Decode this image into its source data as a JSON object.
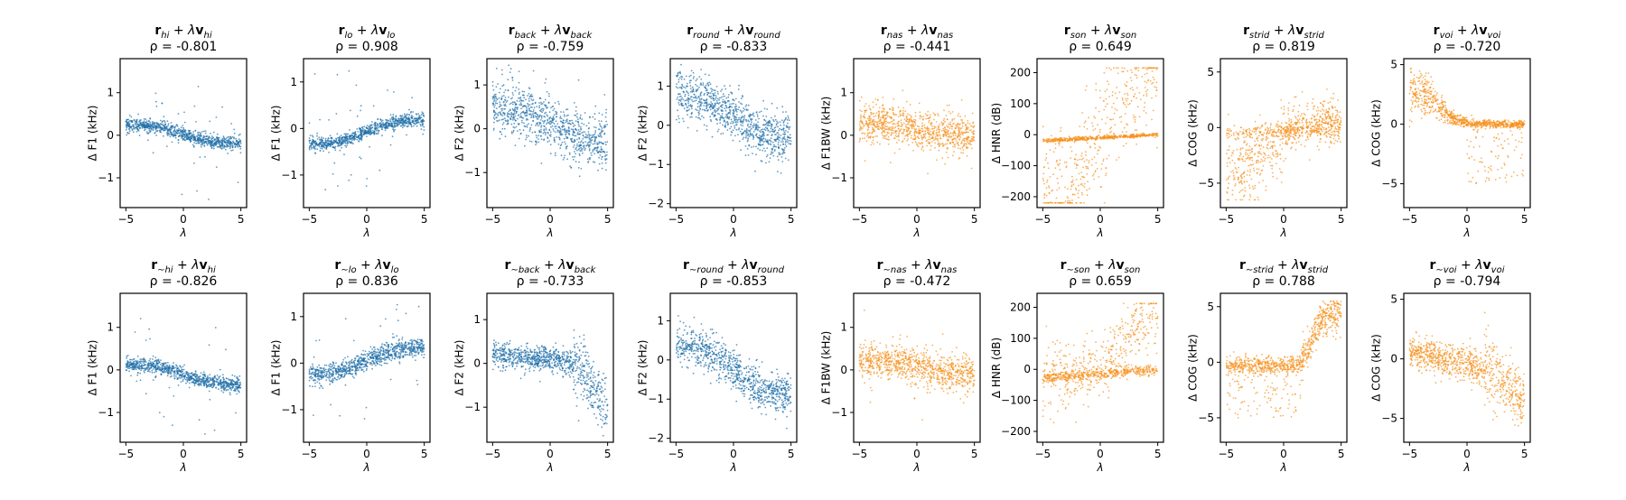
{
  "colors": {
    "blue": "#1f6fa8",
    "orange": "#f7921e"
  },
  "chart_data": [
    {
      "type": "scatter",
      "row": 0,
      "col": 0,
      "color": "blue",
      "title": {
        "vec": "r",
        "vec_sub": "hi",
        "plus": " + ",
        "lambda": "λ",
        "dir": "v",
        "dir_sub": "hi"
      },
      "rho_label": "ρ = -0.801",
      "rho": -0.801,
      "ylabel": "Δ F1 (kHz)",
      "xlabel": "λ",
      "xlim": [
        -5.5,
        5.5
      ],
      "ylim": [
        -1.7,
        1.8
      ],
      "xticks": [
        -5,
        0,
        5
      ],
      "yticks": [
        -1,
        0,
        1
      ],
      "trend": {
        "type": "decline",
        "start": 0.25,
        "end": -0.2,
        "noise": 0.08,
        "outliers": 0.35
      }
    },
    {
      "type": "scatter",
      "row": 0,
      "col": 1,
      "color": "blue",
      "title": {
        "vec": "r",
        "vec_sub": "lo",
        "plus": " + ",
        "lambda": "λ",
        "dir": "v",
        "dir_sub": "lo"
      },
      "rho_label": "ρ = 0.908",
      "rho": 0.908,
      "ylabel": "Δ F1 (kHz)",
      "xlabel": "λ",
      "xlim": [
        -5.5,
        5.5
      ],
      "ylim": [
        -1.7,
        1.5
      ],
      "xticks": [
        -5,
        0,
        5
      ],
      "yticks": [
        -1,
        0,
        1
      ],
      "trend": {
        "type": "rise",
        "start": -0.35,
        "end": 0.2,
        "noise": 0.07,
        "outliers": 0.3
      }
    },
    {
      "type": "scatter",
      "row": 0,
      "col": 2,
      "color": "blue",
      "title": {
        "vec": "r",
        "vec_sub": "back",
        "plus": " + ",
        "lambda": "λ",
        "dir": "v",
        "dir_sub": "back"
      },
      "rho_label": "ρ = -0.759",
      "rho": -0.759,
      "ylabel": "Δ F2 (kHz)",
      "xlabel": "λ",
      "xlim": [
        -5.5,
        5.5
      ],
      "ylim": [
        -1.8,
        1.6
      ],
      "xticks": [
        -5,
        0,
        5
      ],
      "yticks": [
        -1,
        0,
        1
      ],
      "trend": {
        "type": "decline",
        "start": 0.5,
        "end": -0.3,
        "noise": 0.3,
        "outliers": 0.3
      }
    },
    {
      "type": "scatter",
      "row": 0,
      "col": 3,
      "color": "blue",
      "title": {
        "vec": "r",
        "vec_sub": "round",
        "plus": " + ",
        "lambda": "λ",
        "dir": "v",
        "dir_sub": "round"
      },
      "rho_label": "ρ = -0.833",
      "rho": -0.833,
      "ylabel": "Δ F2 (kHz)",
      "xlabel": "λ",
      "xlim": [
        -5.5,
        5.5
      ],
      "ylim": [
        -2.1,
        1.7
      ],
      "xticks": [
        -5,
        0,
        5
      ],
      "yticks": [
        -2,
        -1,
        0,
        1
      ],
      "trend": {
        "type": "decline",
        "start": 0.8,
        "end": -0.35,
        "noise": 0.3,
        "outliers": 0.2
      }
    },
    {
      "type": "scatter",
      "row": 0,
      "col": 4,
      "color": "orange",
      "title": {
        "vec": "r",
        "vec_sub": "nas",
        "plus": " + ",
        "lambda": "λ",
        "dir": "v",
        "dir_sub": "nas"
      },
      "rho_label": "ρ = -0.441",
      "rho": -0.441,
      "ylabel": "Δ F1BW (kHz)",
      "xlabel": "λ",
      "xlim": [
        -5.5,
        5.5
      ],
      "ylim": [
        -1.7,
        1.8
      ],
      "xticks": [
        -5,
        0,
        5
      ],
      "yticks": [
        -1,
        0,
        1
      ],
      "trend": {
        "type": "decline",
        "start": 0.3,
        "end": 0.0,
        "noise": 0.22,
        "outliers": 0.2
      }
    },
    {
      "type": "scatter",
      "row": 0,
      "col": 5,
      "color": "orange",
      "title": {
        "vec": "r",
        "vec_sub": "son",
        "plus": " + ",
        "lambda": "λ",
        "dir": "v",
        "dir_sub": "son"
      },
      "rho_label": "ρ = 0.649",
      "rho": 0.649,
      "ylabel": "Δ HNR (dB)",
      "xlabel": "λ",
      "xlim": [
        -5.5,
        5.5
      ],
      "ylim": [
        -235,
        245
      ],
      "xticks": [
        -5,
        0,
        5
      ],
      "yticks": [
        -200,
        -100,
        0,
        100,
        200
      ],
      "trend": {
        "type": "son"
      }
    },
    {
      "type": "scatter",
      "row": 0,
      "col": 6,
      "color": "orange",
      "title": {
        "vec": "r",
        "vec_sub": "strid",
        "plus": " + ",
        "lambda": "λ",
        "dir": "v",
        "dir_sub": "strid"
      },
      "rho_label": "ρ = 0.819",
      "rho": 0.819,
      "ylabel": "Δ COG (kHz)",
      "xlabel": "λ",
      "xlim": [
        -5.5,
        5.5
      ],
      "ylim": [
        -7.2,
        6.2
      ],
      "xticks": [
        -5,
        0,
        5
      ],
      "yticks": [
        -5,
        0,
        5
      ],
      "trend": {
        "type": "strid"
      }
    },
    {
      "type": "scatter",
      "row": 0,
      "col": 7,
      "color": "orange",
      "title": {
        "vec": "r",
        "vec_sub": "voi",
        "plus": " + ",
        "lambda": "λ",
        "dir": "v",
        "dir_sub": "voi"
      },
      "rho_label": "ρ = -0.720",
      "rho": -0.72,
      "ylabel": "Δ COG (kHz)",
      "xlabel": "λ",
      "xlim": [
        -5.5,
        5.5
      ],
      "ylim": [
        -7.0,
        5.5
      ],
      "xticks": [
        -5,
        0,
        5
      ],
      "yticks": [
        -5,
        0,
        5
      ],
      "trend": {
        "type": "voi"
      }
    },
    {
      "type": "scatter",
      "row": 1,
      "col": 0,
      "color": "blue",
      "title": {
        "vec": "r",
        "vec_sub": "∼hi",
        "plus": " + ",
        "lambda": "λ",
        "dir": "v",
        "dir_sub": "hi"
      },
      "rho_label": "ρ = -0.826",
      "rho": -0.826,
      "ylabel": "Δ F1 (kHz)",
      "xlabel": "λ",
      "xlim": [
        -5.5,
        5.5
      ],
      "ylim": [
        -1.7,
        1.8
      ],
      "xticks": [
        -5,
        0,
        5
      ],
      "yticks": [
        -1,
        0,
        1
      ],
      "trend": {
        "type": "decline",
        "start": 0.15,
        "end": -0.35,
        "noise": 0.08,
        "outliers": 0.3
      }
    },
    {
      "type": "scatter",
      "row": 1,
      "col": 1,
      "color": "blue",
      "title": {
        "vec": "r",
        "vec_sub": "∼lo",
        "plus": " + ",
        "lambda": "λ",
        "dir": "v",
        "dir_sub": "lo"
      },
      "rho_label": "ρ = 0.836",
      "rho": 0.836,
      "ylabel": "Δ F1 (kHz)",
      "xlabel": "λ",
      "xlim": [
        -5.5,
        5.5
      ],
      "ylim": [
        -1.7,
        1.5
      ],
      "xticks": [
        -5,
        0,
        5
      ],
      "yticks": [
        -1,
        0,
        1
      ],
      "trend": {
        "type": "rise",
        "start": -0.25,
        "end": 0.35,
        "noise": 0.1,
        "outliers": 0.3
      }
    },
    {
      "type": "scatter",
      "row": 1,
      "col": 2,
      "color": "blue",
      "title": {
        "vec": "r",
        "vec_sub": "∼back",
        "plus": " + ",
        "lambda": "λ",
        "dir": "v",
        "dir_sub": "back"
      },
      "rho_label": "ρ = -0.733",
      "rho": -0.733,
      "ylabel": "Δ F2 (kHz)",
      "xlabel": "λ",
      "xlim": [
        -5.5,
        5.5
      ],
      "ylim": [
        -1.8,
        1.6
      ],
      "xticks": [
        -5,
        0,
        5
      ],
      "yticks": [
        -1,
        0,
        1
      ],
      "trend": {
        "type": "backcurve"
      }
    },
    {
      "type": "scatter",
      "row": 1,
      "col": 3,
      "color": "blue",
      "title": {
        "vec": "r",
        "vec_sub": "∼round",
        "plus": " + ",
        "lambda": "λ",
        "dir": "v",
        "dir_sub": "round"
      },
      "rho_label": "ρ = -0.853",
      "rho": -0.853,
      "ylabel": "Δ F2 (kHz)",
      "xlabel": "λ",
      "xlim": [
        -5.5,
        5.5
      ],
      "ylim": [
        -2.1,
        1.7
      ],
      "xticks": [
        -5,
        0,
        5
      ],
      "yticks": [
        -2,
        -1,
        0,
        1
      ],
      "trend": {
        "type": "decline",
        "start": 0.4,
        "end": -0.9,
        "noise": 0.25,
        "outliers": 0.2
      }
    },
    {
      "type": "scatter",
      "row": 1,
      "col": 4,
      "color": "orange",
      "title": {
        "vec": "r",
        "vec_sub": "∼nas",
        "plus": " + ",
        "lambda": "λ",
        "dir": "v",
        "dir_sub": "nas"
      },
      "rho_label": "ρ = -0.472",
      "rho": -0.472,
      "ylabel": "Δ F1BW (kHz)",
      "xlabel": "λ",
      "xlim": [
        -5.5,
        5.5
      ],
      "ylim": [
        -1.7,
        1.8
      ],
      "xticks": [
        -5,
        0,
        5
      ],
      "yticks": [
        -1,
        0,
        1
      ],
      "trend": {
        "type": "decline",
        "start": 0.25,
        "end": -0.1,
        "noise": 0.2,
        "outliers": 0.2
      }
    },
    {
      "type": "scatter",
      "row": 1,
      "col": 5,
      "color": "orange",
      "title": {
        "vec": "r",
        "vec_sub": "∼son",
        "plus": " + ",
        "lambda": "λ",
        "dir": "v",
        "dir_sub": "son"
      },
      "rho_label": "ρ = 0.659",
      "rho": 0.659,
      "ylabel": "Δ HNR (dB)",
      "xlabel": "λ",
      "xlim": [
        -5.5,
        5.5
      ],
      "ylim": [
        -235,
        245
      ],
      "xticks": [
        -5,
        0,
        5
      ],
      "yticks": [
        -200,
        -100,
        0,
        100,
        200
      ],
      "trend": {
        "type": "son2"
      }
    },
    {
      "type": "scatter",
      "row": 1,
      "col": 6,
      "color": "orange",
      "title": {
        "vec": "r",
        "vec_sub": "∼strid",
        "plus": " + ",
        "lambda": "λ",
        "dir": "v",
        "dir_sub": "strid"
      },
      "rho_label": "ρ = 0.788",
      "rho": 0.788,
      "ylabel": "Δ COG (kHz)",
      "xlabel": "λ",
      "xlim": [
        -5.5,
        5.5
      ],
      "ylim": [
        -7.2,
        6.2
      ],
      "xticks": [
        -5,
        0,
        5
      ],
      "yticks": [
        -5,
        0,
        5
      ],
      "trend": {
        "type": "strid2"
      }
    },
    {
      "type": "scatter",
      "row": 1,
      "col": 7,
      "color": "orange",
      "title": {
        "vec": "r",
        "vec_sub": "∼voi",
        "plus": " + ",
        "lambda": "λ",
        "dir": "v",
        "dir_sub": "voi"
      },
      "rho_label": "ρ = -0.794",
      "rho": -0.794,
      "ylabel": "Δ COG (kHz)",
      "xlabel": "λ",
      "xlim": [
        -5.5,
        5.5
      ],
      "ylim": [
        -7.0,
        5.5
      ],
      "xticks": [
        -5,
        0,
        5
      ],
      "yticks": [
        -5,
        0,
        5
      ],
      "trend": {
        "type": "voi2"
      }
    }
  ]
}
